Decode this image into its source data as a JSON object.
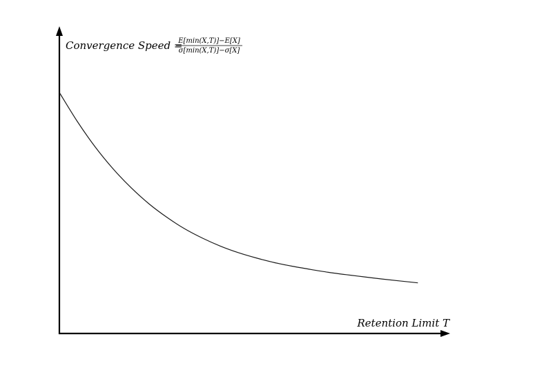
{
  "chart_data": {
    "type": "line",
    "title": "",
    "xlabel": "Retention Limit T",
    "ylabel": {
      "prefix": "Convergence Speed =",
      "numerator": "E[min(X,T)]−E[X]",
      "denominator": "σ[min(X,T)]−σ[X]"
    },
    "xticks": [],
    "yticks": [],
    "grid": false,
    "legend": "none",
    "xlim": [
      0,
      1.09
    ],
    "ylim": [
      0,
      1.0
    ],
    "series": [
      {
        "values": [
          {
            "x": 0.0,
            "y": 1.0
          },
          {
            "x": 0.05,
            "y": 0.88
          },
          {
            "x": 0.1,
            "y": 0.774
          },
          {
            "x": 0.15,
            "y": 0.683
          },
          {
            "x": 0.2,
            "y": 0.605
          },
          {
            "x": 0.25,
            "y": 0.538
          },
          {
            "x": 0.3,
            "y": 0.482
          },
          {
            "x": 0.35,
            "y": 0.434
          },
          {
            "x": 0.4,
            "y": 0.395
          },
          {
            "x": 0.45,
            "y": 0.362
          },
          {
            "x": 0.5,
            "y": 0.335
          },
          {
            "x": 0.55,
            "y": 0.313
          },
          {
            "x": 0.6,
            "y": 0.294
          },
          {
            "x": 0.65,
            "y": 0.279
          },
          {
            "x": 0.7,
            "y": 0.266
          },
          {
            "x": 0.75,
            "y": 0.254
          },
          {
            "x": 0.8,
            "y": 0.244
          },
          {
            "x": 0.85,
            "y": 0.235
          },
          {
            "x": 0.9,
            "y": 0.226
          },
          {
            "x": 0.95,
            "y": 0.218
          },
          {
            "x": 1.0,
            "y": 0.21
          }
        ]
      }
    ],
    "colors": {
      "axis": "#000000",
      "line": "#1a1a1a"
    }
  }
}
